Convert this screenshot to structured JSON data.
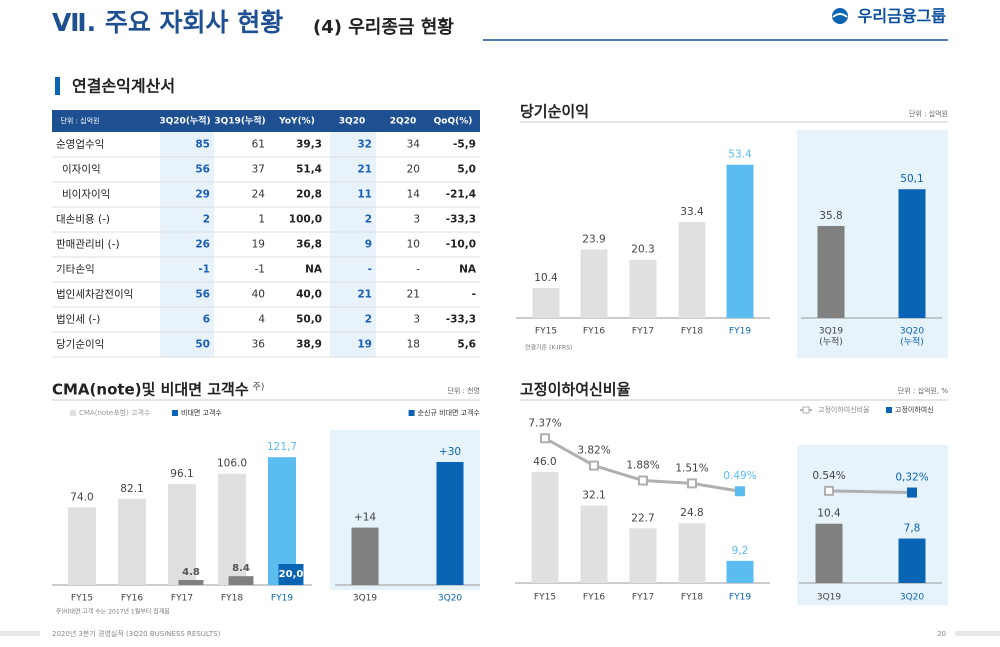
{
  "header": {
    "title": "Ⅶ. 주요 자회사 현황",
    "subtitle": "(4) 우리종금 현황",
    "logo": "우리금융그룹"
  },
  "section_title": "연결손익계산서",
  "table": {
    "header": [
      "단위 : 십억원",
      "3Q20(누적)",
      "3Q19(누적)",
      "YoY(%)",
      "3Q20",
      "2Q20",
      "QoQ(%)"
    ],
    "rows": [
      [
        "순영업수익",
        "85",
        "61",
        "39,3",
        "32",
        "34",
        "-5,9"
      ],
      [
        "이자이익",
        "56",
        "37",
        "51,4",
        "21",
        "20",
        "5,0"
      ],
      [
        "비이자이익",
        "29",
        "24",
        "20,8",
        "11",
        "14",
        "-21,4"
      ],
      [
        "대손비용 (-)",
        "2",
        "1",
        "100,0",
        "2",
        "3",
        "-33,3"
      ],
      [
        "판매관리비 (-)",
        "26",
        "19",
        "36,8",
        "9",
        "10",
        "-10,0"
      ],
      [
        "기타손익",
        "-1",
        "-1",
        "NA",
        "-",
        "-",
        "NA"
      ],
      [
        "법인세차감전이익",
        "56",
        "40",
        "40,0",
        "21",
        "21",
        "-"
      ],
      [
        "법인세 (-)",
        "6",
        "4",
        "50,0",
        "2",
        "3",
        "-33,3"
      ],
      [
        "당기순이익",
        "50",
        "36",
        "38,9",
        "19",
        "18",
        "5,6"
      ]
    ]
  },
  "chart_data": [
    {
      "type": "bar",
      "title": "당기순이익",
      "unit": "단위 : 십억원",
      "note": "연결기준 (K-IFRS)",
      "categories": [
        "FY15",
        "FY16",
        "FY17",
        "FY18",
        "FY19"
      ],
      "series": [
        {
          "values": [
            10.4,
            23.9,
            20.3,
            33.4,
            53.4
          ],
          "colors": [
            "#e0e0e0",
            "#e0e0e0",
            "#e0e0e0",
            "#e0e0e0",
            "#5bbcf0"
          ]
        }
      ]
    },
    {
      "type": "bar",
      "categories": [
        [
          "3Q19",
          "(누적)"
        ],
        [
          "3Q20",
          "(누적)"
        ]
      ],
      "series": [
        {
          "values": [
            35.8,
            50.1
          ],
          "value_labels": [
            "35.8",
            "50,1"
          ],
          "colors": [
            "#808080",
            "#0a64b4"
          ]
        }
      ]
    },
    {
      "type": "bar",
      "title": "CMA(note)및 비대면 고객수",
      "title_note": "주)",
      "unit": "단위 : 천명",
      "footnote": "주)비대면 고객 수는 2017년 1월부터 집계됨",
      "categories": [
        "FY15",
        "FY16",
        "FY17",
        "FY18",
        "FY19"
      ],
      "series": [
        {
          "name": "CMA(note포함) 고객수",
          "color": "#e0e0e0",
          "values": [
            74.0,
            82.1,
            96.1,
            106.0,
            121.7
          ],
          "value_labels": [
            "74.0",
            "82.1",
            "96.1",
            "106.0",
            "121,7"
          ],
          "colors": [
            "#e0e0e0",
            "#e0e0e0",
            "#e0e0e0",
            "#e0e0e0",
            "#5bbcf0"
          ]
        },
        {
          "name": "비대면 고객수",
          "color": "#0a64b4",
          "values": [
            null,
            null,
            4.8,
            8.4,
            20.0
          ],
          "value_labels": [
            null,
            null,
            "4.8",
            "8.4",
            "20,0"
          ],
          "colors": [
            null,
            null,
            "#808080",
            "#808080",
            "#0a64b4"
          ]
        }
      ]
    },
    {
      "type": "bar",
      "categories": [
        "3Q19",
        "3Q20"
      ],
      "series": [
        {
          "name": "순신규 비대면 고객수",
          "color": "#0a64b4",
          "values": [
            14,
            30
          ],
          "value_labels": [
            "+14",
            "+30"
          ],
          "colors": [
            "#808080",
            "#0a64b4"
          ]
        }
      ]
    },
    {
      "type": "bar_line",
      "title": "고정이하여신비율",
      "unit": "단위 : 십억원, %",
      "categories": [
        "FY15",
        "FY16",
        "FY17",
        "FY18",
        "FY19"
      ],
      "series": [
        {
          "name": "고정이하여신비율",
          "type": "line",
          "color": "#b0b0b0",
          "values": [
            7.37,
            3.82,
            1.88,
            1.51,
            0.49
          ],
          "value_labels": [
            "7.37%",
            "3.82%",
            "1.88%",
            "1.51%",
            "0.49%"
          ],
          "colors": [
            "#b0b0b0",
            "#b0b0b0",
            "#b0b0b0",
            "#b0b0b0",
            "#5bbcf0"
          ]
        },
        {
          "name": "고정이하여신",
          "type": "bar",
          "color": "#0a64b4",
          "values": [
            46.0,
            32.1,
            22.7,
            24.8,
            9.2
          ],
          "value_labels": [
            "46.0",
            "32.1",
            "22.7",
            "24.8",
            "9,2"
          ],
          "colors": [
            "#e0e0e0",
            "#e0e0e0",
            "#e0e0e0",
            "#e0e0e0",
            "#5bbcf0"
          ]
        }
      ]
    },
    {
      "type": "bar_line",
      "categories": [
        "3Q19",
        "3Q20"
      ],
      "series": [
        {
          "type": "line",
          "color": "#b0b0b0",
          "values": [
            0.54,
            0.32
          ],
          "value_labels": [
            "0.54%",
            "0,32%"
          ],
          "colors": [
            "#b0b0b0",
            "#0a64b4"
          ]
        },
        {
          "type": "bar",
          "values": [
            10.4,
            7.8
          ],
          "value_labels": [
            "10.4",
            "7,8"
          ],
          "colors": [
            "#808080",
            "#0a64b4"
          ]
        }
      ]
    }
  ],
  "footer": {
    "text": "2020년 3분기 경영실적 (3Q20 BUSINESS RESULTS)",
    "page": "20"
  }
}
